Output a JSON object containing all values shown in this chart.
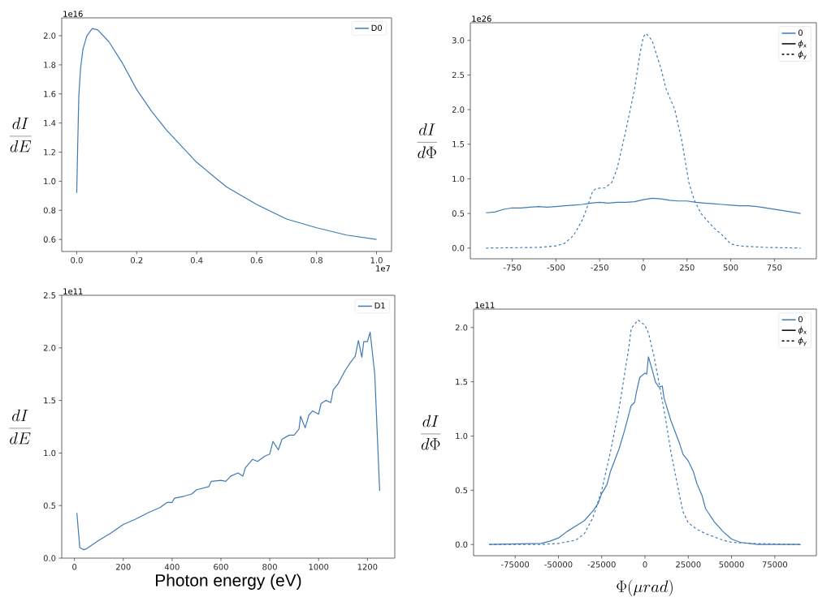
{
  "chart_data": [
    {
      "type": "line",
      "ylabel": "\\frac{dI}{dE}",
      "annotations": [
        "1e16",
        "1e7"
      ],
      "legend": "top right",
      "xlim": [
        -0.05,
        1.05
      ],
      "ylim": [
        0.517,
        2.123
      ],
      "xticks": [
        {
          "value": 0,
          "label": "0.0"
        },
        0.2,
        0.4,
        0.6,
        0.8,
        {
          "value": 1,
          "label": "1.0"
        }
      ],
      "yticks": [
        0.6,
        0.8,
        {
          "value": 1,
          "label": "1.0"
        },
        1.2,
        1.4,
        1.6,
        1.8,
        {
          "value": 2,
          "label": "2.0"
        }
      ],
      "series": [
        {
          "name": "D0",
          "color": "#3e7bb6",
          "line_style": "solid",
          "x": [
            0,
            0.003,
            0.007,
            0.013,
            0.021,
            0.034,
            0.052,
            0.07,
            0.107,
            0.15,
            0.2,
            0.25,
            0.3,
            0.4,
            0.5,
            0.6,
            0.7,
            0.8,
            0.9,
            1.0
          ],
          "values": [
            0.92,
            1.22,
            1.59,
            1.78,
            1.91,
            2.0,
            2.05,
            2.04,
            1.96,
            1.82,
            1.63,
            1.48,
            1.35,
            1.13,
            0.96,
            0.84,
            0.74,
            0.68,
            0.63,
            0.6
          ]
        }
      ]
    },
    {
      "type": "line",
      "ylabel": "\\frac{dI}{d\\Phi}",
      "annotations": [
        "1e26"
      ],
      "legend": "top right",
      "legend_title": "0",
      "xlim": [
        -990,
        990
      ],
      "ylim": [
        -0.155,
        3.255
      ],
      "xticks": [
        -750,
        -500,
        -250,
        0,
        250,
        500,
        750
      ],
      "yticks": [
        {
          "value": 0,
          "label": "0.0"
        },
        0.5,
        {
          "value": 1,
          "label": "1.0"
        },
        1.5,
        {
          "value": 2,
          "label": "2.0"
        },
        2.5,
        {
          "value": 3,
          "label": "3.0"
        }
      ],
      "series": [
        {
          "name": "*ϕ*$_{x}$",
          "color": "#3e7bb6",
          "line_style": "solid",
          "x": [
            -900,
            -850,
            -800,
            -750,
            -700,
            -650,
            -600,
            -550,
            -500,
            -450,
            -400,
            -350,
            -300,
            -250,
            -200,
            -150,
            -100,
            -50,
            0,
            50,
            100,
            150,
            200,
            250,
            300,
            350,
            400,
            450,
            500,
            550,
            600,
            650,
            700,
            750,
            800,
            850,
            900
          ],
          "values": [
            0.51,
            0.52,
            0.56,
            0.58,
            0.58,
            0.59,
            0.6,
            0.59,
            0.6,
            0.61,
            0.62,
            0.63,
            0.65,
            0.66,
            0.65,
            0.66,
            0.66,
            0.67,
            0.7,
            0.72,
            0.71,
            0.69,
            0.68,
            0.68,
            0.66,
            0.65,
            0.64,
            0.63,
            0.62,
            0.61,
            0.61,
            0.6,
            0.58,
            0.56,
            0.54,
            0.52,
            0.5
          ]
        },
        {
          "name": "*ϕ*$_{y}$",
          "color": "#3e7bb6",
          "line_style": "dashed",
          "x": [
            -900,
            -600,
            -500,
            -450,
            -400,
            -350,
            -320,
            -290,
            -270,
            -220,
            -180,
            -150,
            -100,
            -50,
            -20,
            0,
            15,
            50,
            100,
            130,
            180,
            220,
            260,
            290,
            330,
            400,
            450,
            500,
            550,
            700,
            900
          ],
          "values": [
            0,
            0.01,
            0.03,
            0.07,
            0.18,
            0.4,
            0.6,
            0.82,
            0.86,
            0.87,
            0.95,
            1.15,
            1.7,
            2.3,
            2.8,
            3.05,
            3.1,
            3.0,
            2.6,
            2.3,
            2.0,
            1.55,
            0.95,
            0.7,
            0.5,
            0.3,
            0.19,
            0.06,
            0.03,
            0.01,
            0
          ]
        }
      ]
    },
    {
      "type": "line",
      "ylabel": "\\frac{dI}{dE}",
      "xlabel": "Photon energy (eV)",
      "annotations": [
        "1e11"
      ],
      "legend": "top right",
      "xlim": [
        -52,
        1312
      ],
      "ylim": [
        0,
        2.5
      ],
      "xticks": [
        0,
        200,
        400,
        600,
        800,
        1000,
        1200
      ],
      "yticks": [
        {
          "value": 0,
          "label": "0.0"
        },
        0.5,
        {
          "value": 1,
          "label": "1.0"
        },
        1.5,
        {
          "value": 2,
          "label": "2.0"
        },
        2.5
      ],
      "series": [
        {
          "name": "D1",
          "color": "#3e7bb6",
          "line_style": "solid",
          "x": [
            10,
            22,
            38,
            50,
            100,
            150,
            200,
            250,
            300,
            350,
            380,
            400,
            410,
            450,
            480,
            500,
            550,
            560,
            600,
            620,
            640,
            670,
            690,
            700,
            730,
            750,
            780,
            800,
            813,
            835,
            850,
            880,
            900,
            920,
            926,
            945,
            960,
            975,
            1000,
            1010,
            1030,
            1050,
            1060,
            1080,
            1110,
            1130,
            1150,
            1163,
            1177,
            1185,
            1200,
            1211,
            1230,
            1250
          ],
          "values": [
            0.43,
            0.1,
            0.08,
            0.09,
            0.17,
            0.24,
            0.32,
            0.37,
            0.43,
            0.48,
            0.53,
            0.53,
            0.57,
            0.59,
            0.61,
            0.65,
            0.68,
            0.73,
            0.74,
            0.73,
            0.78,
            0.81,
            0.78,
            0.86,
            0.94,
            0.92,
            0.97,
            0.99,
            1.11,
            1.03,
            1.13,
            1.17,
            1.17,
            1.23,
            1.35,
            1.24,
            1.36,
            1.4,
            1.37,
            1.47,
            1.5,
            1.48,
            1.6,
            1.66,
            1.79,
            1.86,
            1.92,
            2.07,
            1.91,
            2.06,
            2.06,
            2.15,
            1.75,
            0.64
          ]
        }
      ]
    },
    {
      "type": "line",
      "ylabel": "\\frac{dI}{d\\Phi}",
      "xlabel": "\\Phi(\\mu rad)",
      "annotations": [
        "1e11"
      ],
      "legend": "top right",
      "legend_title": "0",
      "xlim": [
        -99000,
        99000
      ],
      "ylim": [
        -0.1035,
        2.17
      ],
      "xticks": [
        -75000,
        -50000,
        -25000,
        0,
        25000,
        50000,
        75000
      ],
      "yticks": [
        {
          "value": 0,
          "label": "0.0"
        },
        0.5,
        {
          "value": 1,
          "label": "1.0"
        },
        1.5,
        {
          "value": 2,
          "label": "2.0"
        }
      ],
      "series": [
        {
          "name": "*ϕ*$_{x}$",
          "color": "#3e7bb6",
          "line_style": "solid",
          "x": [
            -90000,
            -60000,
            -55000,
            -50000,
            -45000,
            -40000,
            -35000,
            -30000,
            -27000,
            -25000,
            -22000,
            -20000,
            -15000,
            -12000,
            -10000,
            -8000,
            -6000,
            -5000,
            -3000,
            0,
            1000,
            2000,
            4000,
            6000,
            8000,
            10000,
            11000,
            15000,
            20000,
            22000,
            25000,
            28000,
            30000,
            33000,
            35000,
            40000,
            45000,
            50000,
            55000,
            65000,
            90000
          ],
          "values": [
            0,
            0.01,
            0.03,
            0.06,
            0.12,
            0.17,
            0.22,
            0.31,
            0.38,
            0.47,
            0.55,
            0.67,
            0.88,
            1.04,
            1.16,
            1.28,
            1.31,
            1.4,
            1.54,
            1.58,
            1.57,
            1.73,
            1.62,
            1.5,
            1.45,
            1.46,
            1.35,
            1.14,
            0.93,
            0.83,
            0.77,
            0.67,
            0.56,
            0.45,
            0.33,
            0.21,
            0.12,
            0.05,
            0.02,
            0,
            0
          ]
        },
        {
          "name": "*ϕ*$_{y}$",
          "color": "#3e7bb6",
          "line_style": "dashed",
          "x": [
            -90000,
            -60000,
            -50000,
            -40000,
            -35000,
            -30000,
            -25000,
            -20000,
            -15000,
            -12000,
            -9000,
            -8000,
            -4000,
            0,
            2000,
            5000,
            8000,
            12000,
            15000,
            20000,
            22000,
            25000,
            30000,
            35000,
            40000,
            45000,
            50000,
            60000,
            90000
          ],
          "values": [
            0,
            0,
            0.01,
            0.04,
            0.1,
            0.25,
            0.5,
            0.85,
            1.25,
            1.55,
            1.85,
            1.99,
            2.07,
            2.02,
            1.95,
            1.75,
            1.5,
            1.15,
            0.85,
            0.45,
            0.3,
            0.2,
            0.14,
            0.1,
            0.07,
            0.04,
            0.02,
            0.01,
            0
          ]
        }
      ]
    }
  ]
}
